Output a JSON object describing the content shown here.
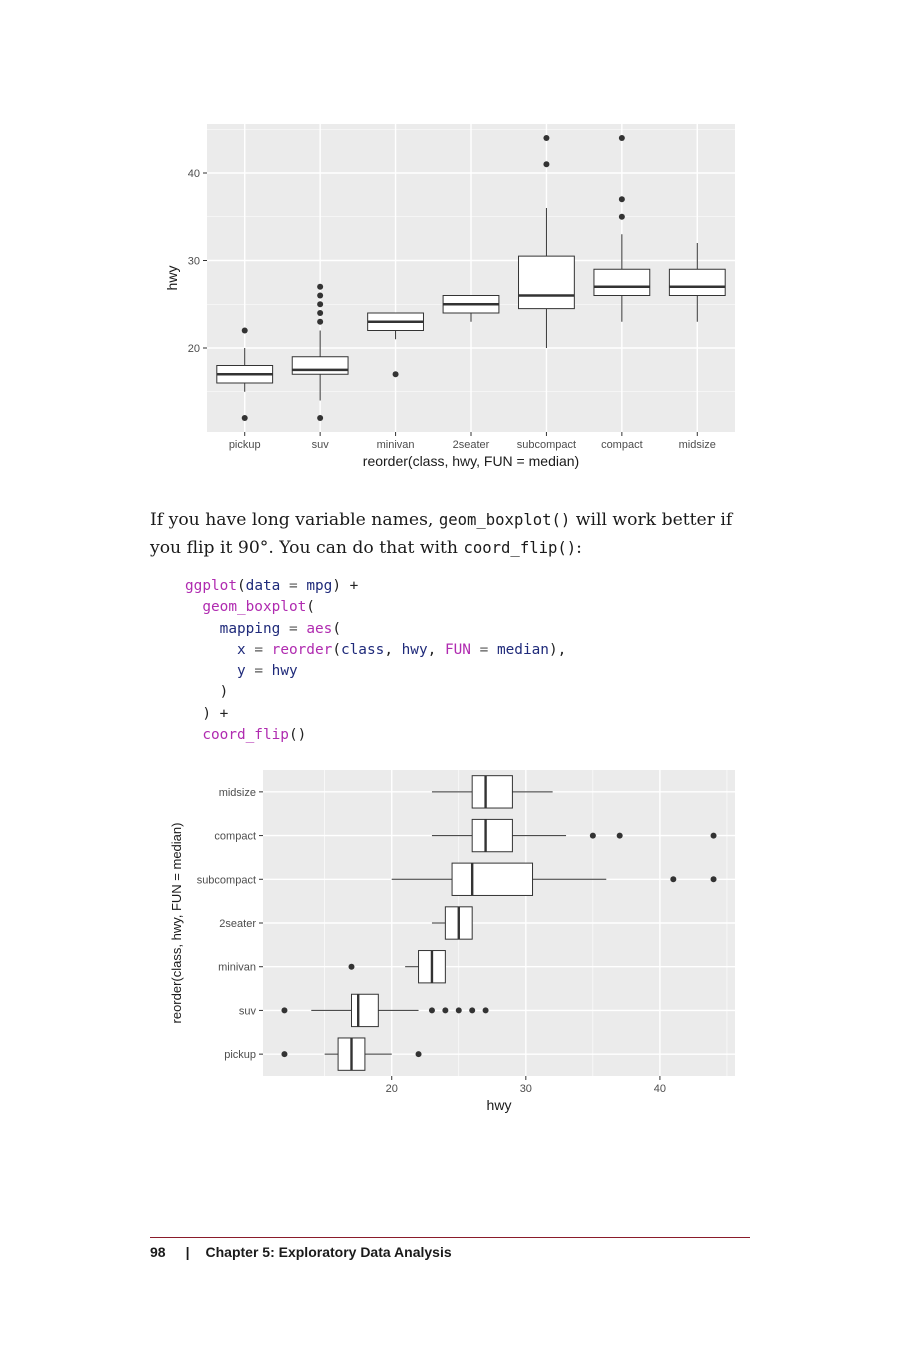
{
  "paragraph": {
    "part1": "If you have long variable names, ",
    "code1": "geom_boxplot()",
    "part2": " will work better if you flip it 90°. You can do that with ",
    "code2": "coord_flip()",
    "part3": ":"
  },
  "code": {
    "l1": {
      "fn": "ggplot",
      "open": "(",
      "arg": "data",
      "eq": " = ",
      "val": "mpg",
      "close": ") +"
    },
    "l2": {
      "fn": "geom_boxplot",
      "open": "("
    },
    "l3": {
      "arg": "mapping",
      "eq": " = ",
      "fn": "aes",
      "open": "("
    },
    "l4": {
      "arg": "x",
      "eq": " = ",
      "fn": "reorder",
      "open": "(",
      "a1": "class",
      "c1": ", ",
      "a2": "hwy",
      "c2": ", ",
      "a3": "FUN",
      "eq2": " = ",
      "a4": "median",
      "close": "),"
    },
    "l5": {
      "arg": "y",
      "eq": " = ",
      "val": "hwy"
    },
    "l6": {
      "close": ")"
    },
    "l7": {
      "close": ") +"
    },
    "l8": {
      "fn": "coord_flip",
      "open": "()"
    }
  },
  "footer": {
    "page_number": "98",
    "separator": "|",
    "chapter": "Chapter 5: Exploratory Data Analysis"
  },
  "chart_data": [
    {
      "type": "boxplot",
      "orientation": "vertical",
      "xlabel": "reorder(class, hwy, FUN = median)",
      "ylabel": "hwy",
      "ylim": [
        10.4,
        45.6
      ],
      "ticks": [
        20,
        30,
        40
      ],
      "tick_labels": [
        "20",
        "30",
        "40"
      ],
      "grid": true,
      "categories": [
        "pickup",
        "suv",
        "minivan",
        "2seater",
        "subcompact",
        "compact",
        "midsize"
      ],
      "boxes": [
        {
          "min": 15,
          "q1": 16,
          "median": 17,
          "q3": 18,
          "max": 20,
          "outliers": [
            12,
            22
          ]
        },
        {
          "min": 14,
          "q1": 17,
          "median": 17.5,
          "q3": 19,
          "max": 22,
          "outliers": [
            12,
            23,
            24,
            25,
            26,
            27
          ]
        },
        {
          "min": 21,
          "q1": 22,
          "median": 23,
          "q3": 24,
          "max": 24,
          "outliers": [
            17
          ]
        },
        {
          "min": 23,
          "q1": 24,
          "median": 25,
          "q3": 26,
          "max": 26,
          "outliers": []
        },
        {
          "min": 20,
          "q1": 24.5,
          "median": 26,
          "q3": 30.5,
          "max": 36,
          "outliers": [
            41,
            44
          ]
        },
        {
          "min": 23,
          "q1": 26,
          "median": 27,
          "q3": 29,
          "max": 33,
          "outliers": [
            35,
            37,
            44
          ]
        },
        {
          "min": 23,
          "q1": 26,
          "median": 27,
          "q3": 29,
          "max": 32,
          "outliers": []
        }
      ]
    },
    {
      "type": "boxplot",
      "orientation": "horizontal",
      "xlabel": "hwy",
      "ylabel": "reorder(class, hwy, FUN = median)",
      "xlim": [
        10.4,
        45.6
      ],
      "ticks": [
        20,
        30,
        40
      ],
      "tick_labels": [
        "20",
        "30",
        "40"
      ],
      "grid": true,
      "categories": [
        "pickup",
        "suv",
        "minivan",
        "2seater",
        "subcompact",
        "compact",
        "midsize"
      ],
      "boxes": [
        {
          "min": 15,
          "q1": 16,
          "median": 17,
          "q3": 18,
          "max": 20,
          "outliers": [
            12,
            22
          ]
        },
        {
          "min": 14,
          "q1": 17,
          "median": 17.5,
          "q3": 19,
          "max": 22,
          "outliers": [
            12,
            23,
            24,
            25,
            26,
            27
          ]
        },
        {
          "min": 21,
          "q1": 22,
          "median": 23,
          "q3": 24,
          "max": 24,
          "outliers": [
            17
          ]
        },
        {
          "min": 23,
          "q1": 24,
          "median": 25,
          "q3": 26,
          "max": 26,
          "outliers": []
        },
        {
          "min": 20,
          "q1": 24.5,
          "median": 26,
          "q3": 30.5,
          "max": 36,
          "outliers": [
            41,
            44
          ]
        },
        {
          "min": 23,
          "q1": 26,
          "median": 27,
          "q3": 29,
          "max": 33,
          "outliers": [
            35,
            37,
            44
          ]
        },
        {
          "min": 23,
          "q1": 26,
          "median": 27,
          "q3": 29,
          "max": 32,
          "outliers": []
        }
      ]
    }
  ]
}
